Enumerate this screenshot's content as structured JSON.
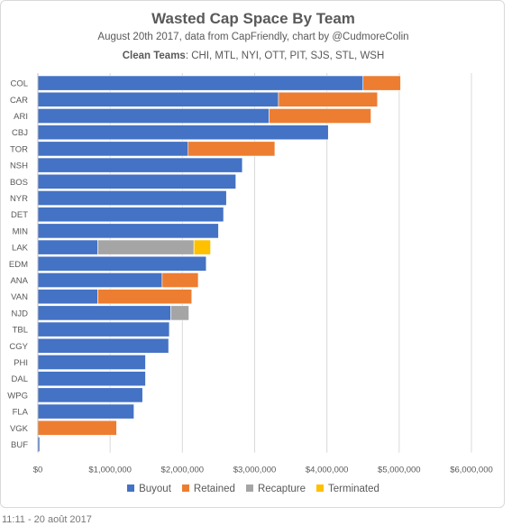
{
  "card": {
    "title": "Wasted Cap Space By Team",
    "subtitle": "August 20th 2017, data from CapFriendly, chart by @CudmoreColin",
    "clean_label": "Clean Teams",
    "clean_teams": ": CHI, MTL, NYI, OTT, PIT, SJS, STL, WSH"
  },
  "footer": {
    "timestamp": "11:11 - 20 août 2017"
  },
  "chart_data": {
    "type": "bar",
    "orientation": "horizontal",
    "stacked": true,
    "title": "Wasted Cap Space By Team",
    "subtitle": "August 20th 2017, data from CapFriendly, chart by @CudmoreColin",
    "categories": [
      "COL",
      "CAR",
      "ARI",
      "CBJ",
      "TOR",
      "NSH",
      "BOS",
      "NYR",
      "DET",
      "MIN",
      "LAK",
      "EDM",
      "ANA",
      "VAN",
      "NJD",
      "TBL",
      "CGY",
      "PHI",
      "DAL",
      "WPG",
      "FLA",
      "VGK",
      "BUF"
    ],
    "series": [
      {
        "name": "Buyout",
        "color": "#4472c4",
        "values": [
          4500000,
          3330000,
          3200000,
          4020000,
          2080000,
          2830000,
          2740000,
          2610000,
          2570000,
          2500000,
          830000,
          2330000,
          1720000,
          830000,
          1840000,
          1820000,
          1810000,
          1490000,
          1490000,
          1450000,
          1330000,
          0,
          25000
        ]
      },
      {
        "name": "Retained",
        "color": "#ed7d31",
        "values": [
          520000,
          1370000,
          1410000,
          0,
          1200000,
          0,
          0,
          0,
          0,
          0,
          0,
          0,
          500000,
          1300000,
          0,
          0,
          0,
          0,
          0,
          0,
          0,
          1090000,
          0
        ]
      },
      {
        "name": "Recapture",
        "color": "#a5a5a5",
        "values": [
          0,
          0,
          0,
          0,
          0,
          0,
          0,
          0,
          0,
          0,
          1330000,
          0,
          0,
          0,
          250000,
          0,
          0,
          0,
          0,
          0,
          0,
          0,
          0
        ]
      },
      {
        "name": "Terminated",
        "color": "#ffc000",
        "values": [
          0,
          0,
          0,
          0,
          0,
          0,
          0,
          0,
          0,
          0,
          230000,
          0,
          0,
          0,
          0,
          0,
          0,
          0,
          0,
          0,
          0,
          0,
          0
        ]
      }
    ],
    "xlim": [
      0,
      6000000
    ],
    "x_ticks": [
      0,
      1000000,
      2000000,
      3000000,
      4000000,
      5000000,
      6000000
    ],
    "x_tick_labels": [
      "$0",
      "$1,000,000",
      "$2,000,000",
      "$3,000,000",
      "$4,000,000",
      "$5,000,000",
      "$6,000,000"
    ],
    "grid": "vertical",
    "legend": "bottom",
    "xlabel": "",
    "ylabel": ""
  }
}
